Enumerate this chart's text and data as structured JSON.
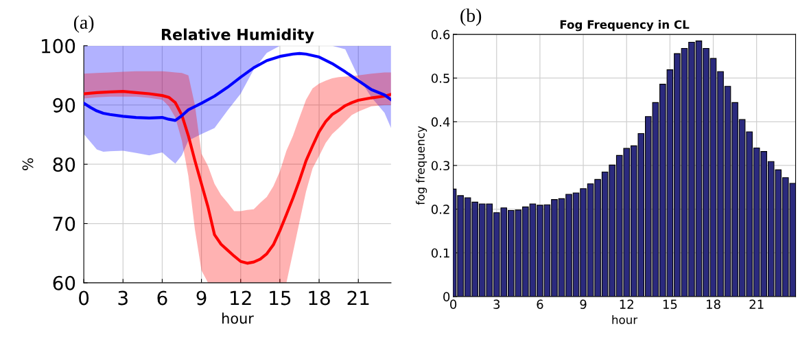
{
  "chart_data": [
    {
      "type": "line",
      "title": "Relative Humidity",
      "xlabel": "hour",
      "ylabel": "%",
      "annotations": [
        "(a)"
      ],
      "xlim": [
        0,
        23.5
      ],
      "xticks": [
        0,
        3,
        6,
        9,
        12,
        15,
        18,
        21
      ],
      "ylim": [
        60,
        100
      ],
      "yticks": [
        60,
        70,
        80,
        90,
        100
      ],
      "grid": true,
      "series": [
        {
          "color": "#0000ff",
          "x": [
            0,
            0.5,
            1,
            1.5,
            2,
            3,
            4,
            5,
            6,
            6.5,
            7,
            7.5,
            8,
            9,
            10,
            11,
            12,
            13,
            14,
            15,
            16,
            16.5,
            17,
            18,
            19,
            20,
            21,
            22,
            23,
            23.5
          ],
          "values": [
            90.3,
            89.6,
            89.0,
            88.6,
            88.4,
            88.1,
            87.9,
            87.8,
            87.9,
            87.6,
            87.4,
            88.2,
            89.2,
            90.3,
            91.5,
            93.0,
            94.7,
            96.3,
            97.5,
            98.2,
            98.6,
            98.7,
            98.6,
            98.1,
            97.0,
            95.6,
            94.1,
            92.6,
            91.7,
            90.9
          ],
          "lower": [
            85.1,
            83.8,
            82.5,
            82.1,
            82.2,
            82.3,
            81.9,
            81.5,
            82.0,
            81.0,
            80.1,
            81.5,
            84.0,
            85.1,
            86.1,
            89.1,
            91.9,
            96.0,
            98.8,
            100,
            100,
            100,
            100,
            100,
            100,
            99.4,
            94.7,
            91.3,
            88.7,
            86.1
          ],
          "upper": [
            100,
            100,
            100,
            100,
            100,
            100,
            100,
            100,
            100,
            100,
            100,
            100,
            100,
            100,
            100,
            100,
            100,
            100,
            100,
            100,
            100,
            100,
            100,
            100,
            100,
            100,
            100,
            100,
            100,
            100
          ]
        },
        {
          "color": "#ff0000",
          "x": [
            0,
            1,
            2,
            3,
            4,
            5,
            6,
            6.5,
            7,
            7.5,
            8,
            8.5,
            9,
            9.5,
            10,
            10.5,
            11,
            11.5,
            12,
            12.5,
            13,
            13.5,
            14,
            14.5,
            15,
            15.5,
            16,
            16.5,
            17,
            17.5,
            18,
            18.5,
            19,
            19.5,
            20,
            20.5,
            21,
            22,
            23,
            23.5
          ],
          "values": [
            91.9,
            92.1,
            92.2,
            92.3,
            92.1,
            91.9,
            91.6,
            91.3,
            90.4,
            88.3,
            84.8,
            80.6,
            76.7,
            72.8,
            68.1,
            66.5,
            65.5,
            64.5,
            63.6,
            63.3,
            63.5,
            64.0,
            64.9,
            66.4,
            68.8,
            71.5,
            74.3,
            77.3,
            80.6,
            83.1,
            85.5,
            87.2,
            88.4,
            89.1,
            89.9,
            90.4,
            90.8,
            91.2,
            91.5,
            91.8
          ],
          "lower": [
            91.1,
            91.3,
            91.4,
            91.4,
            91.4,
            91.2,
            90.9,
            89.8,
            87.9,
            84.0,
            78.0,
            69.0,
            62.1,
            60,
            60,
            60,
            60,
            60,
            60,
            60,
            60,
            60,
            60,
            60,
            60,
            60,
            65.1,
            70.3,
            75.4,
            79.3,
            81.4,
            83.6,
            85.1,
            86.1,
            87.2,
            88.3,
            88.9,
            89.8,
            90.0,
            90.0
          ],
          "upper": [
            95.3,
            95.4,
            95.5,
            95.6,
            95.7,
            95.7,
            95.7,
            95.6,
            95.5,
            95.4,
            95.0,
            90.0,
            81.8,
            79.7,
            76.7,
            74.8,
            73.5,
            72.1,
            72.1,
            72.3,
            72.4,
            73.5,
            74.5,
            76.3,
            78.8,
            82.3,
            84.8,
            87.9,
            90.9,
            92.8,
            93.6,
            94.1,
            94.5,
            94.7,
            94.8,
            94.9,
            95.0,
            95.3,
            95.5,
            95.5
          ]
        }
      ]
    },
    {
      "type": "bar",
      "title": "Fog Frequency in CL",
      "xlabel": "hour",
      "ylabel": "fog frequency",
      "annotations": [
        "(b)"
      ],
      "xlim": [
        0,
        23.7
      ],
      "xticks": [
        0,
        3,
        6,
        9,
        12,
        15,
        18,
        21
      ],
      "ylim": [
        0,
        0.6
      ],
      "yticks": [
        0,
        0.1,
        0.2,
        0.3,
        0.4,
        0.5,
        0.6
      ],
      "grid": true,
      "x": [
        0,
        0.5,
        1,
        1.5,
        2,
        2.5,
        3,
        3.5,
        4,
        4.5,
        5,
        5.5,
        6,
        6.5,
        7,
        7.5,
        8,
        8.5,
        9,
        9.5,
        10,
        10.5,
        11,
        11.5,
        12,
        12.5,
        13,
        13.5,
        14,
        14.5,
        15,
        15.5,
        16,
        16.5,
        17,
        17.5,
        18,
        18.5,
        19,
        19.5,
        20,
        20.5,
        21,
        21.5,
        22,
        22.5,
        23,
        23.5
      ],
      "series": [
        {
          "color": "#2b2a7e",
          "values": [
            0.246,
            0.231,
            0.226,
            0.216,
            0.212,
            0.212,
            0.192,
            0.203,
            0.197,
            0.198,
            0.205,
            0.212,
            0.209,
            0.21,
            0.222,
            0.224,
            0.234,
            0.237,
            0.247,
            0.258,
            0.268,
            0.285,
            0.301,
            0.323,
            0.339,
            0.345,
            0.373,
            0.412,
            0.444,
            0.486,
            0.519,
            0.556,
            0.568,
            0.582,
            0.585,
            0.568,
            0.545,
            0.515,
            0.481,
            0.444,
            0.405,
            0.377,
            0.34,
            0.332,
            0.309,
            0.29,
            0.272,
            0.259
          ]
        }
      ]
    }
  ]
}
